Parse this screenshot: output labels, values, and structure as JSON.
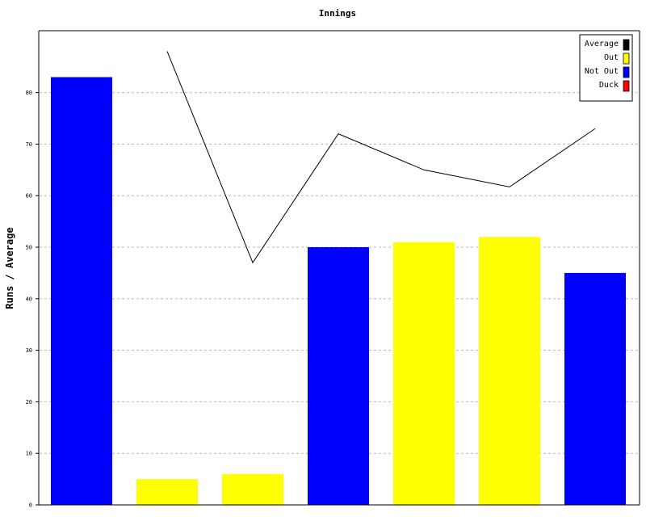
{
  "chart_data": {
    "type": "bar",
    "title": "Innings",
    "xlabel": "",
    "ylabel": "Runs / Average",
    "ylim": [
      0,
      92
    ],
    "yticks": [
      0,
      10,
      20,
      30,
      40,
      50,
      60,
      70,
      80
    ],
    "grid": true,
    "legend_position": "top-right",
    "legend": [
      {
        "name": "Average",
        "color": "#000000"
      },
      {
        "name": "Out",
        "color": "#ffff00"
      },
      {
        "name": "Not Out",
        "color": "#0000ff"
      },
      {
        "name": "Duck",
        "color": "#ff0000"
      }
    ],
    "bars": [
      {
        "value": 83,
        "status": "Not Out",
        "color": "#0000ff"
      },
      {
        "value": 5,
        "status": "Out",
        "color": "#ffff00"
      },
      {
        "value": 6,
        "status": "Out",
        "color": "#ffff00"
      },
      {
        "value": 50,
        "status": "Not Out",
        "color": "#0000ff"
      },
      {
        "value": 51,
        "status": "Out",
        "color": "#ffff00"
      },
      {
        "value": 52,
        "status": "Out",
        "color": "#ffff00"
      },
      {
        "value": 45,
        "status": "Not Out",
        "color": "#0000ff"
      }
    ],
    "average_line": [
      null,
      88,
      47,
      72,
      65,
      61.7,
      73
    ]
  }
}
